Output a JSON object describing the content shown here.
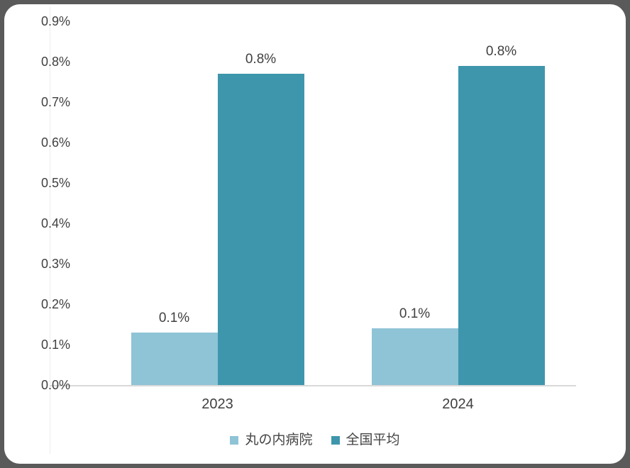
{
  "frame": {
    "outer_background": "#5a5a5a",
    "card_background": "#ffffff"
  },
  "colors": {
    "series_light_blue": "#8FC3D6",
    "series_teal": "#3E96AC",
    "axis_line": "#d9d9d9",
    "plot_left_line": "#ececec",
    "text": "#404040"
  },
  "chart_data": {
    "type": "bar",
    "title": "",
    "xlabel": "",
    "ylabel": "",
    "categories": [
      "2023",
      "2024"
    ],
    "series": [
      {
        "name": "丸の内病院",
        "color": "#8FC3D6",
        "values": [
          0.13,
          0.14
        ],
        "display_labels": [
          "0.1%",
          "0.1%"
        ]
      },
      {
        "name": "全国平均",
        "color": "#3E96AC",
        "values": [
          0.77,
          0.79
        ],
        "display_labels": [
          "0.8%",
          "0.8%"
        ]
      }
    ],
    "ylim": [
      0.0,
      0.9
    ],
    "ytick_step": 0.1,
    "yticks": [
      "0.0%",
      "0.1%",
      "0.2%",
      "0.3%",
      "0.4%",
      "0.5%",
      "0.6%",
      "0.7%",
      "0.8%",
      "0.9%"
    ],
    "grid": "off",
    "legend_position": "bottom",
    "legend": [
      "丸の内病院",
      "全国平均"
    ]
  }
}
